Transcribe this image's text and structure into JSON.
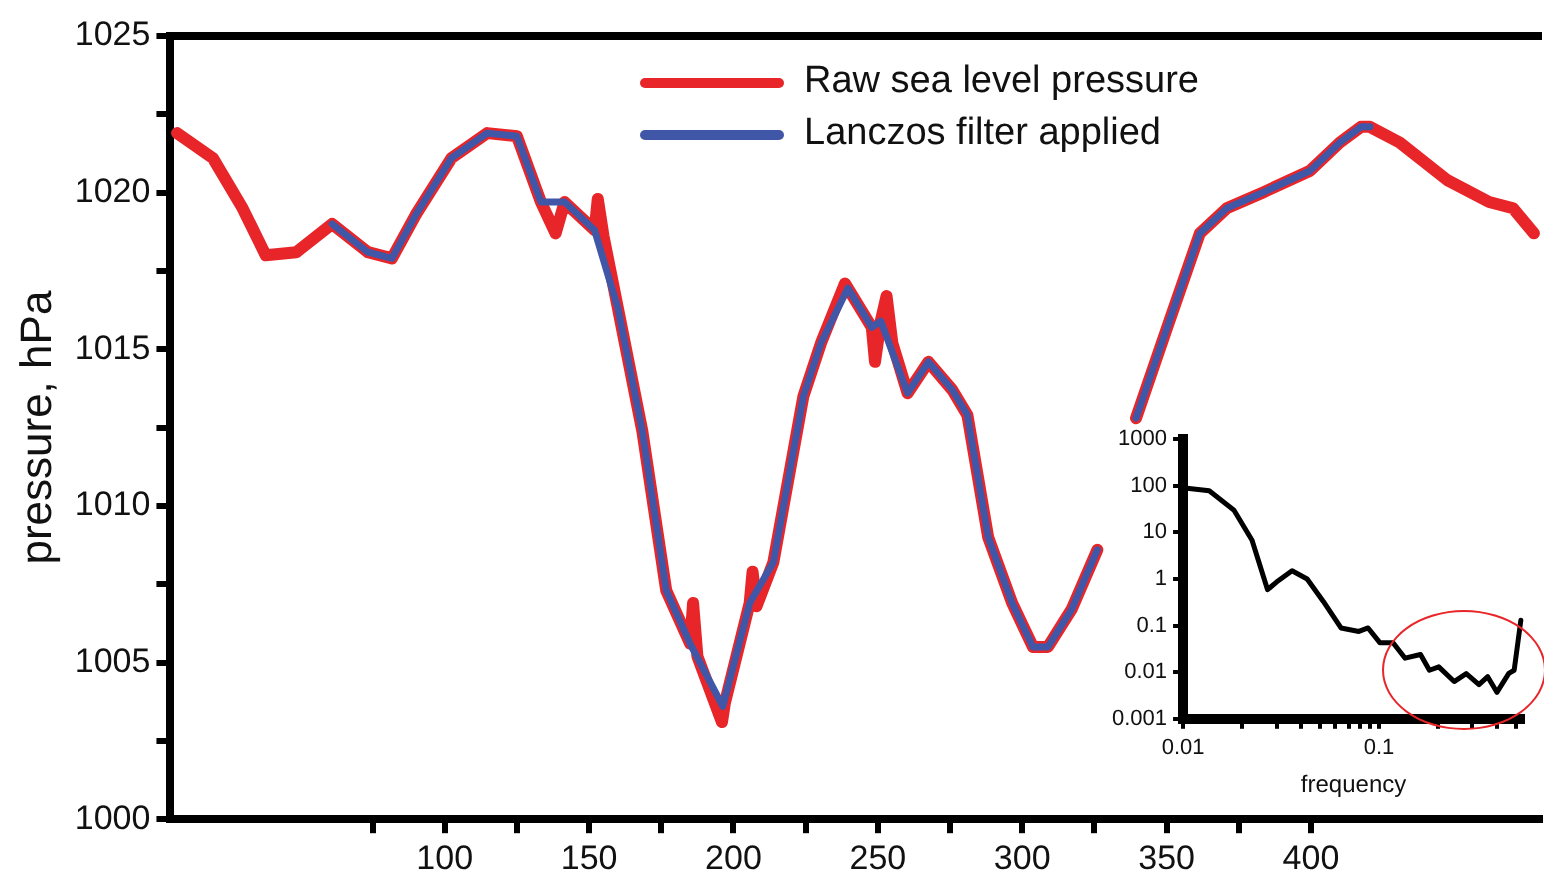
{
  "chart_data": [
    {
      "type": "line",
      "ylabel": "pressure, hPa",
      "xlim": [
        5,
        480
      ],
      "ylim": [
        1000,
        1025
      ],
      "xticks": [
        {
          "value": 75,
          "label": null
        },
        100,
        {
          "value": 125,
          "label": null
        },
        150,
        {
          "value": 175,
          "label": null
        },
        200,
        {
          "value": 225,
          "label": null
        },
        250,
        {
          "value": 275,
          "label": null
        },
        300,
        {
          "value": 325,
          "label": null
        },
        350,
        {
          "value": 375,
          "label": null
        },
        400
      ],
      "yticks": [
        1000,
        {
          "value": 1002.5,
          "label": null
        },
        1005,
        {
          "value": 1007.5,
          "label": null
        },
        1010,
        {
          "value": 1012.5,
          "label": null
        },
        1015,
        {
          "value": 1017.5,
          "label": null
        },
        1020,
        {
          "value": 1022.5,
          "label": null
        },
        1025
      ],
      "legend": "top",
      "marker": "none",
      "series": [
        {
          "name": "Raw sea level pressure",
          "color": "#e8262a",
          "x": [
            7.3,
            19.7,
            30,
            38,
            48.6,
            61,
            73.4,
            81.7,
            90,
            102.3,
            114.7,
            125,
            133.3,
            138.4,
            141.5,
            151.9,
            153,
            155,
            160,
            168.4,
            176.7,
            185,
            186,
            187.5,
            196,
            197,
            205.6,
            206.6,
            208,
            213.8,
            224.2,
            230.3,
            238.6,
            247.9,
            249,
            251,
            253,
            255,
            260.3,
            267.5,
            275.8,
            281,
            288.2,
            296.5,
            303.7,
            308.9,
            317.1,
            326,
            330,
            339.4,
            350.2,
            361.5,
            370.8,
            383.2,
            399.7,
            410,
            417.3,
            420.4,
            430.7,
            447.2,
            461.7,
            470,
            477.2
          ],
          "values": [
            1021.9,
            1021.1,
            1019.5,
            1018.0,
            1018.1,
            1019.0,
            1018.1,
            1017.9,
            1019.3,
            1021.1,
            1021.9,
            1021.8,
            1019.7,
            1018.7,
            1019.7,
            1018.8,
            1019.8,
            1018.6,
            1016.3,
            1012.4,
            1007.3,
            1005.6,
            1006.9,
            1005.2,
            1003.1,
            1003.7,
            1006.9,
            1007.9,
            1006.8,
            1008.2,
            1013.5,
            1015.2,
            1017.1,
            1015.7,
            1014.6,
            1015.9,
            1016.7,
            1015.2,
            1013.6,
            1014.6,
            1013.7,
            1012.9,
            1009.0,
            1006.9,
            1005.5,
            1005.5,
            1006.7,
            1008.6,
            null,
            1012.8,
            1015.7,
            1018.7,
            1019.5,
            1020.0,
            1020.7,
            1021.6,
            1022.1,
            1022.1,
            1021.6,
            1020.4,
            1019.7,
            1019.5,
            1018.7
          ]
        },
        {
          "name": "Lanczos filter applied",
          "color": "#4057a8",
          "x": [
            61,
            73.4,
            81.7,
            90,
            102.3,
            114.7,
            125,
            133.3,
            141.5,
            151.9,
            160,
            168.4,
            176.7,
            185,
            196.3,
            205.6,
            213.8,
            224.2,
            230.3,
            239.6,
            247.9,
            251,
            260.3,
            267.5,
            275.8,
            281,
            288.2,
            296.5,
            303.7,
            308.9,
            317.1,
            326,
            330,
            339.4,
            350.2,
            361.5,
            370.8,
            383.2,
            399.7,
            410,
            417.3,
            420.4
          ],
          "values": [
            1019.0,
            1018.1,
            1017.9,
            1019.3,
            1021.1,
            1021.9,
            1021.8,
            1019.7,
            1019.7,
            1018.8,
            1016.3,
            1012.4,
            1007.3,
            1005.6,
            1003.6,
            1006.9,
            1008.2,
            1013.5,
            1015.2,
            1016.95,
            1015.7,
            1015.9,
            1013.6,
            1014.6,
            1013.7,
            1012.9,
            1009.0,
            1006.9,
            1005.5,
            1005.5,
            1006.7,
            1008.6,
            null,
            1012.8,
            1015.7,
            1018.7,
            1019.5,
            1020.0,
            1020.7,
            1021.6,
            1022.1,
            1022.1
          ]
        }
      ]
    },
    {
      "type": "line",
      "xlabel": "frequency",
      "log": "xy",
      "xlim": [
        0.01,
        0.55
      ],
      "ylim": [
        0.001,
        1000
      ],
      "xticks": [
        0.01,
        {
          "value": 0.02,
          "label": null
        },
        {
          "value": 0.03,
          "label": null
        },
        {
          "value": 0.04,
          "label": null
        },
        {
          "value": 0.05,
          "label": null
        },
        {
          "value": 0.06,
          "label": null
        },
        {
          "value": 0.07,
          "label": null
        },
        {
          "value": 0.08,
          "label": null
        },
        {
          "value": 0.09,
          "label": null
        },
        0.1,
        {
          "value": 0.2,
          "label": null
        },
        {
          "value": 0.3,
          "label": null
        },
        {
          "value": 0.4,
          "label": null
        },
        {
          "value": 0.5,
          "label": null
        }
      ],
      "yticks": [
        0.001,
        0.01,
        0.1,
        1,
        10,
        100,
        1000
      ],
      "marker": "none",
      "series": [
        {
          "color": "#000000",
          "x": [
            0.0102,
            0.0136,
            0.0182,
            0.0225,
            0.027,
            0.03,
            0.036,
            0.043,
            0.052,
            0.064,
            0.079,
            0.088,
            0.101,
            0.118,
            0.136,
            0.163,
            0.181,
            0.202,
            0.242,
            0.279,
            0.324,
            0.359,
            0.4,
            0.46,
            0.49,
            0.53
          ],
          "values": [
            90,
            78,
            30,
            6.8,
            0.59,
            0.86,
            1.5,
            1.0,
            0.33,
            0.089,
            0.075,
            0.089,
            0.043,
            0.043,
            0.02,
            0.024,
            0.011,
            0.013,
            0.0063,
            0.0093,
            0.0054,
            0.008,
            0.0037,
            0.0094,
            0.011,
            0.13
          ]
        }
      ]
    }
  ]
}
